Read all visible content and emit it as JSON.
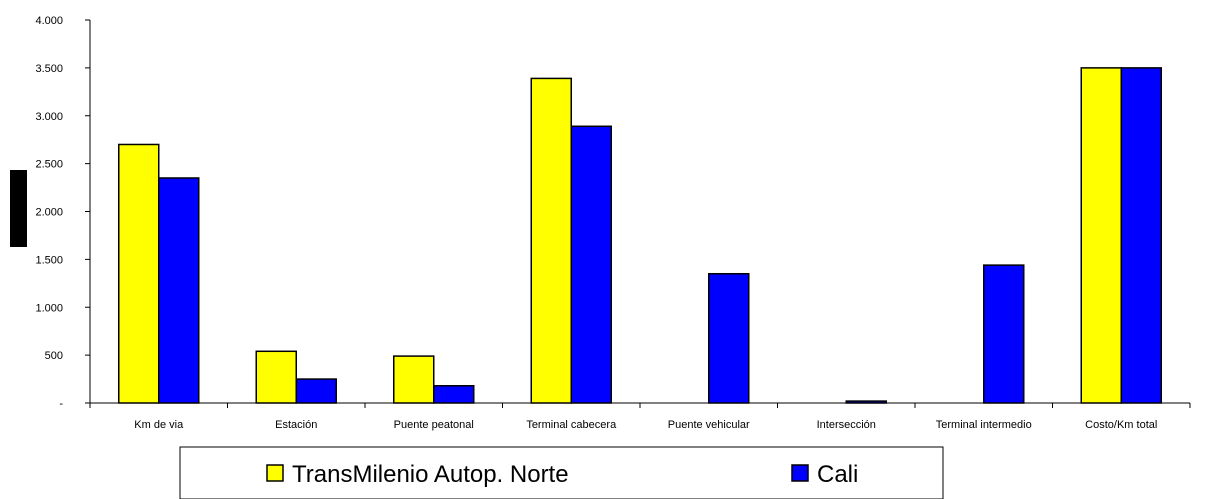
{
  "chart_data": {
    "type": "bar",
    "categories": [
      "Km de via",
      "Estación",
      "Puente peatonal",
      "Terminal cabecera",
      "Puente vehicular",
      "Intersección",
      "Terminal intermedio",
      "Costo/Km total"
    ],
    "series": [
      {
        "name": "TransMilenio Autop. Norte",
        "color": "#ffff00",
        "values": [
          2700,
          540,
          490,
          3390,
          null,
          null,
          null,
          3500
        ]
      },
      {
        "name": "Cali",
        "color": "#0000ff",
        "values": [
          2350,
          250,
          180,
          2890,
          1350,
          20,
          1440,
          3500
        ]
      }
    ],
    "y_ticks": [
      {
        "value": 0,
        "label": "-"
      },
      {
        "value": 500,
        "label": "500"
      },
      {
        "value": 1000,
        "label": "1.000"
      },
      {
        "value": 1500,
        "label": "1.500"
      },
      {
        "value": 2000,
        "label": "2.000"
      },
      {
        "value": 2500,
        "label": "2.500"
      },
      {
        "value": 3000,
        "label": "3.000"
      },
      {
        "value": 3500,
        "label": "3.500"
      },
      {
        "value": 4000,
        "label": "4.000"
      }
    ],
    "ylim": [
      0,
      4000
    ],
    "grid": false,
    "legend_position": "bottom"
  }
}
